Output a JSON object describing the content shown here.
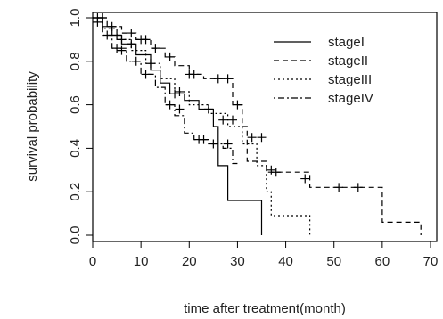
{
  "chart_data": {
    "type": "line",
    "xlabel": "time after treatment(month)",
    "ylabel": "survival probability",
    "xlim": [
      0,
      70
    ],
    "ylim": [
      0,
      1
    ],
    "x_ticks": [
      0,
      10,
      20,
      30,
      40,
      50,
      60,
      70
    ],
    "y_ticks": [
      0.0,
      0.2,
      0.4,
      0.6,
      0.8,
      1.0
    ],
    "x_tick_labels": [
      "0",
      "10",
      "20",
      "30",
      "40",
      "50",
      "60",
      "70"
    ],
    "y_tick_labels": [
      "0.0",
      "0.2",
      "0.4",
      "0.6",
      "0.8",
      "1.0"
    ],
    "step": true,
    "legend_position": "top-right",
    "series": [
      {
        "name": "stageI",
        "line_style": "solid",
        "x": [
          0,
          2,
          4,
          6,
          9,
          12,
          14,
          16,
          19,
          22,
          25,
          26,
          28,
          35,
          35
        ],
        "y": [
          1.0,
          0.96,
          0.92,
          0.88,
          0.83,
          0.76,
          0.7,
          0.65,
          0.62,
          0.58,
          0.5,
          0.32,
          0.16,
          0.16,
          0.0
        ],
        "censored": [
          [
            5,
            0.92
          ],
          [
            8,
            0.88
          ],
          [
            17,
            0.65
          ],
          [
            24,
            0.58
          ]
        ]
      },
      {
        "name": "stageII",
        "line_style": "dashed",
        "x": [
          0,
          3,
          6,
          9,
          12,
          15,
          17,
          20,
          23,
          29,
          31,
          32,
          36,
          44,
          45,
          60,
          68,
          68
        ],
        "y": [
          1.0,
          0.96,
          0.93,
          0.9,
          0.86,
          0.82,
          0.78,
          0.74,
          0.72,
          0.6,
          0.5,
          0.34,
          0.29,
          0.29,
          0.22,
          0.06,
          0.06,
          0.0
        ],
        "censored": [
          [
            1,
            1.0
          ],
          [
            2,
            1.0
          ],
          [
            4,
            0.96
          ],
          [
            8,
            0.93
          ],
          [
            10,
            0.9
          ],
          [
            11,
            0.9
          ],
          [
            13,
            0.86
          ],
          [
            16,
            0.82
          ],
          [
            20,
            0.74
          ],
          [
            21,
            0.74
          ],
          [
            26,
            0.72
          ],
          [
            28,
            0.72
          ],
          [
            30,
            0.6
          ],
          [
            38,
            0.29
          ],
          [
            44,
            0.26
          ],
          [
            51,
            0.22
          ],
          [
            55,
            0.22
          ]
        ]
      },
      {
        "name": "stageIII",
        "line_style": "dotted",
        "x": [
          0,
          2,
          5,
          8,
          11,
          14,
          17,
          20,
          24,
          28,
          31,
          34,
          36,
          37,
          45,
          45
        ],
        "y": [
          1.0,
          0.95,
          0.9,
          0.85,
          0.79,
          0.72,
          0.66,
          0.6,
          0.56,
          0.5,
          0.42,
          0.32,
          0.2,
          0.09,
          0.09,
          0.0
        ],
        "censored": [
          [
            6,
            0.9
          ],
          [
            12,
            0.79
          ],
          [
            18,
            0.66
          ],
          [
            27,
            0.53
          ],
          [
            29,
            0.53
          ],
          [
            33,
            0.45
          ],
          [
            35,
            0.45
          ],
          [
            37,
            0.3
          ]
        ]
      },
      {
        "name": "stageIV",
        "line_style": "dashdot",
        "x": [
          0,
          2,
          4,
          7,
          10,
          13,
          15,
          17,
          19,
          21,
          24,
          27,
          29,
          30
        ],
        "y": [
          1.0,
          0.92,
          0.86,
          0.8,
          0.74,
          0.68,
          0.6,
          0.55,
          0.47,
          0.44,
          0.42,
          0.4,
          0.33,
          0.33
        ],
        "censored": [
          [
            1,
            0.98
          ],
          [
            3,
            0.92
          ],
          [
            5,
            0.86
          ],
          [
            6,
            0.85
          ],
          [
            9,
            0.8
          ],
          [
            11,
            0.74
          ],
          [
            16,
            0.6
          ],
          [
            18,
            0.58
          ],
          [
            22,
            0.44
          ],
          [
            23,
            0.44
          ],
          [
            25,
            0.42
          ],
          [
            28,
            0.42
          ]
        ]
      }
    ]
  }
}
